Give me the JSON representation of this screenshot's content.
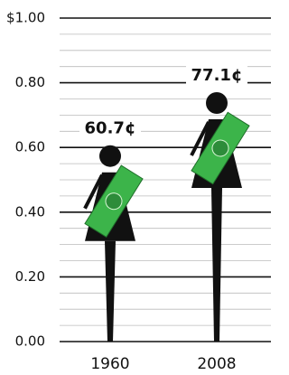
{
  "chart_data": {
    "type": "pictogram",
    "categories": [
      "1960",
      "2008"
    ],
    "values": [
      0.607,
      0.771
    ],
    "value_labels": [
      "60.7¢",
      "77.1¢"
    ],
    "color": "#111111",
    "ylim": [
      0,
      1
    ],
    "yticks": [
      {
        "value": 0,
        "label": "0.00"
      },
      {
        "value": 0.2,
        "label": "0.20"
      },
      {
        "value": 0.4,
        "label": "0.40"
      },
      {
        "value": 0.6,
        "label": "0.60"
      },
      {
        "value": 0.8,
        "label": "0.80"
      },
      {
        "value": 1,
        "label": "$1.00"
      }
    ],
    "minor_yticks": [
      0.05,
      0.1,
      0.15,
      0.25,
      0.3,
      0.35,
      0.45,
      0.5,
      0.55,
      0.65,
      0.7,
      0.75,
      0.85,
      0.9,
      0.95
    ],
    "grid": true
  }
}
